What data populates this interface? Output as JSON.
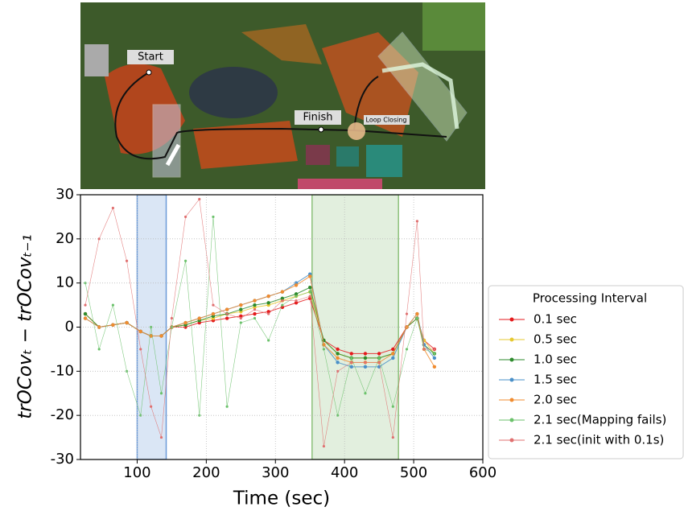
{
  "map_labels": [
    "Start",
    "Finish",
    "Loop Closing"
  ],
  "chart_data": {
    "type": "line",
    "xlabel": "Time (sec)",
    "ylabel": "trOCovₜ − trOCovₜ₋₁",
    "xlim": [
      18,
      600
    ],
    "ylim": [
      -30,
      30
    ],
    "xticks": [
      100,
      200,
      300,
      400,
      500,
      600
    ],
    "yticks": [
      -30,
      -20,
      -10,
      0,
      10,
      20,
      30
    ],
    "grid": true,
    "legend_title": "Processing Interval",
    "legend_position": "right",
    "shaded_regions": [
      {
        "start": 100,
        "end": 142,
        "color": "#6a9ad8"
      },
      {
        "start": 353,
        "end": 478,
        "color": "#8cc07a"
      }
    ],
    "x": [
      25,
      45,
      65,
      85,
      105,
      120,
      135,
      150,
      170,
      190,
      210,
      230,
      250,
      270,
      290,
      310,
      330,
      350,
      370,
      390,
      410,
      430,
      450,
      470,
      490,
      505,
      515,
      530
    ],
    "series": [
      {
        "name": "0.1 sec",
        "color": "#e41a1c",
        "values": [
          3,
          0,
          0.5,
          1,
          -1,
          -2,
          -2,
          0,
          0,
          1,
          1.5,
          2,
          2.5,
          3,
          3.5,
          4.5,
          5.5,
          6.5,
          -3,
          -5,
          -6,
          -6,
          -6,
          -5,
          0,
          2,
          -3,
          -5
        ]
      },
      {
        "name": "0.5 sec",
        "color": "#e6c830",
        "values": [
          3,
          0,
          0.5,
          1,
          -1,
          -2,
          -2,
          0,
          0.5,
          1.5,
          2,
          3,
          3.5,
          4.5,
          5,
          6,
          7,
          8,
          -3,
          -6,
          -7,
          -7,
          -7,
          -6,
          0,
          2,
          -3,
          -6
        ]
      },
      {
        "name": "1.0 sec",
        "color": "#2e8b2e",
        "values": [
          3,
          0,
          0.5,
          1,
          -1,
          -2,
          -2,
          0,
          0.5,
          1.5,
          2.5,
          3,
          4,
          5,
          5.5,
          6.5,
          7.5,
          9,
          -3,
          -6,
          -7,
          -7,
          -7,
          -6,
          0,
          2,
          -4,
          -6
        ]
      },
      {
        "name": "1.5 sec",
        "color": "#4a90c8",
        "values": [
          2,
          0,
          0.5,
          1,
          -1,
          -2,
          -2,
          0,
          1,
          2,
          3,
          4,
          5,
          6,
          7,
          8,
          10,
          12,
          -4,
          -8,
          -9,
          -9,
          -9,
          -7,
          0,
          3,
          -4,
          -7
        ]
      },
      {
        "name": "2.0 sec",
        "color": "#f08c30",
        "values": [
          2,
          0,
          0.5,
          1,
          -1,
          -2,
          -2,
          0,
          1,
          2,
          3,
          4,
          5,
          6,
          7,
          8,
          9.5,
          11.5,
          -4,
          -7,
          -8,
          -8,
          -8,
          -6,
          0,
          3,
          -5,
          -9
        ]
      },
      {
        "name": "2.1 sec(Mapping fails)",
        "color": "#6cc26c",
        "values": [
          10,
          -5,
          5,
          -10,
          -20,
          0,
          -15,
          0,
          15,
          -20,
          25,
          -18,
          1,
          2,
          -3,
          5,
          7,
          8,
          -5,
          -20,
          -7,
          -15,
          -7,
          -18,
          -5,
          2,
          -5,
          -6
        ]
      },
      {
        "name": "2.1 sec(init with 0.1s)",
        "color": "#e07070",
        "values": [
          5,
          20,
          27,
          15,
          -5,
          -18,
          -25,
          2,
          25,
          29,
          5,
          3,
          2,
          4,
          3,
          6,
          6,
          7,
          -27,
          -10,
          -8,
          -8,
          -8,
          -25,
          3,
          24,
          -5,
          -5
        ]
      }
    ]
  }
}
